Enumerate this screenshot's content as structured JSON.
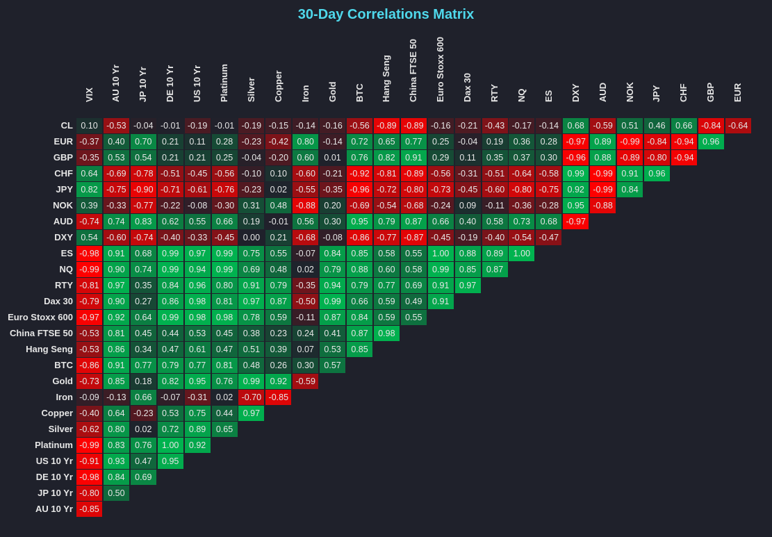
{
  "chart_data": {
    "type": "heatmap",
    "title": "30-Day Correlations Matrix",
    "color_negative": "#ff0000",
    "color_zero": "#1f212b",
    "color_positive": "#00b34f",
    "columns": [
      "VIX",
      "AU 10 Yr",
      "JP 10 Yr",
      "DE 10 Yr",
      "US 10 Yr",
      "Platinum",
      "Silver",
      "Copper",
      "Iron",
      "Gold",
      "BTC",
      "Hang Seng",
      "China FTSE 50",
      "Euro Stoxx 600",
      "Dax 30",
      "RTY",
      "NQ",
      "ES",
      "DXY",
      "AUD",
      "NOK",
      "JPY",
      "CHF",
      "GBP",
      "EUR"
    ],
    "rows": [
      "CL",
      "EUR",
      "GBP",
      "CHF",
      "JPY",
      "NOK",
      "AUD",
      "DXY",
      "ES",
      "NQ",
      "RTY",
      "Dax 30",
      "Euro Stoxx 600",
      "China FTSE 50",
      "Hang Seng",
      "BTC",
      "Gold",
      "Iron",
      "Copper",
      "Silver",
      "Platinum",
      "US 10 Yr",
      "DE 10 Yr",
      "JP 10 Yr",
      "AU 10 Yr"
    ],
    "values": [
      [
        0.1,
        -0.53,
        -0.04,
        -0.01,
        -0.19,
        -0.01,
        -0.19,
        -0.15,
        -0.14,
        -0.16,
        -0.56,
        -0.89,
        -0.89,
        -0.16,
        -0.21,
        -0.43,
        -0.17,
        -0.14,
        0.68,
        -0.59,
        0.51,
        0.46,
        0.66,
        -0.84,
        -0.64
      ],
      [
        -0.37,
        0.4,
        0.7,
        0.21,
        0.11,
        0.28,
        -0.23,
        -0.42,
        0.8,
        -0.14,
        0.72,
        0.65,
        0.77,
        0.25,
        -0.04,
        0.19,
        0.36,
        0.28,
        -0.97,
        0.89,
        -0.99,
        -0.84,
        -0.94,
        0.96
      ],
      [
        -0.35,
        0.53,
        0.54,
        0.21,
        0.21,
        0.25,
        -0.04,
        -0.2,
        0.6,
        0.01,
        0.76,
        0.82,
        0.91,
        0.29,
        0.11,
        0.35,
        0.37,
        0.3,
        -0.96,
        0.88,
        -0.89,
        -0.8,
        -0.94
      ],
      [
        0.64,
        -0.69,
        -0.78,
        -0.51,
        -0.45,
        -0.56,
        -0.1,
        0.1,
        -0.6,
        -0.21,
        -0.92,
        -0.81,
        -0.89,
        -0.56,
        -0.31,
        -0.51,
        -0.64,
        -0.58,
        0.99,
        -0.99,
        0.91,
        0.96
      ],
      [
        0.82,
        -0.75,
        -0.9,
        -0.71,
        -0.61,
        -0.76,
        -0.23,
        0.02,
        -0.55,
        -0.35,
        -0.96,
        -0.72,
        -0.8,
        -0.73,
        -0.45,
        -0.6,
        -0.8,
        -0.75,
        0.92,
        -0.99,
        0.84
      ],
      [
        0.39,
        -0.33,
        -0.77,
        -0.22,
        -0.08,
        -0.3,
        0.31,
        0.48,
        -0.88,
        0.2,
        -0.69,
        -0.54,
        -0.68,
        -0.24,
        0.09,
        -0.11,
        -0.36,
        -0.28,
        0.95,
        -0.88
      ],
      [
        -0.74,
        0.74,
        0.83,
        0.62,
        0.55,
        0.66,
        0.19,
        -0.01,
        0.56,
        0.3,
        0.95,
        0.79,
        0.87,
        0.66,
        0.4,
        0.58,
        0.73,
        0.68,
        -0.97
      ],
      [
        0.54,
        -0.6,
        -0.74,
        -0.4,
        -0.33,
        -0.45,
        0.0,
        0.21,
        -0.68,
        -0.08,
        -0.86,
        -0.77,
        -0.87,
        -0.45,
        -0.19,
        -0.4,
        -0.54,
        -0.47
      ],
      [
        -0.98,
        0.91,
        0.68,
        0.99,
        0.97,
        0.99,
        0.75,
        0.55,
        -0.07,
        0.84,
        0.85,
        0.58,
        0.55,
        1.0,
        0.88,
        0.89,
        1.0
      ],
      [
        -0.99,
        0.9,
        0.74,
        0.99,
        0.94,
        0.99,
        0.69,
        0.48,
        0.02,
        0.79,
        0.88,
        0.6,
        0.58,
        0.99,
        0.85,
        0.87
      ],
      [
        -0.81,
        0.97,
        0.35,
        0.84,
        0.96,
        0.8,
        0.91,
        0.79,
        -0.35,
        0.94,
        0.79,
        0.77,
        0.69,
        0.91,
        0.97
      ],
      [
        -0.79,
        0.9,
        0.27,
        0.86,
        0.98,
        0.81,
        0.97,
        0.87,
        -0.5,
        0.99,
        0.66,
        0.59,
        0.49,
        0.91
      ],
      [
        -0.97,
        0.92,
        0.64,
        0.99,
        0.98,
        0.98,
        0.78,
        0.59,
        -0.11,
        0.87,
        0.84,
        0.59,
        0.55
      ],
      [
        -0.53,
        0.81,
        0.45,
        0.44,
        0.53,
        0.45,
        0.38,
        0.23,
        0.24,
        0.41,
        0.87,
        0.98
      ],
      [
        -0.53,
        0.86,
        0.34,
        0.47,
        0.61,
        0.47,
        0.51,
        0.39,
        0.07,
        0.53,
        0.85
      ],
      [
        -0.86,
        0.91,
        0.77,
        0.79,
        0.77,
        0.81,
        0.48,
        0.26,
        0.3,
        0.57
      ],
      [
        -0.73,
        0.85,
        0.18,
        0.82,
        0.95,
        0.76,
        0.99,
        0.92,
        -0.59
      ],
      [
        -0.09,
        -0.13,
        0.66,
        -0.07,
        -0.31,
        0.02,
        -0.7,
        -0.85
      ],
      [
        -0.4,
        0.64,
        -0.23,
        0.53,
        0.75,
        0.44,
        0.97
      ],
      [
        -0.62,
        0.8,
        0.02,
        0.72,
        0.89,
        0.65
      ],
      [
        -0.99,
        0.83,
        0.76,
        1.0,
        0.92
      ],
      [
        -0.91,
        0.93,
        0.47,
        0.95
      ],
      [
        -0.98,
        0.84,
        0.69
      ],
      [
        -0.8,
        0.5
      ],
      [
        -0.85
      ]
    ]
  }
}
